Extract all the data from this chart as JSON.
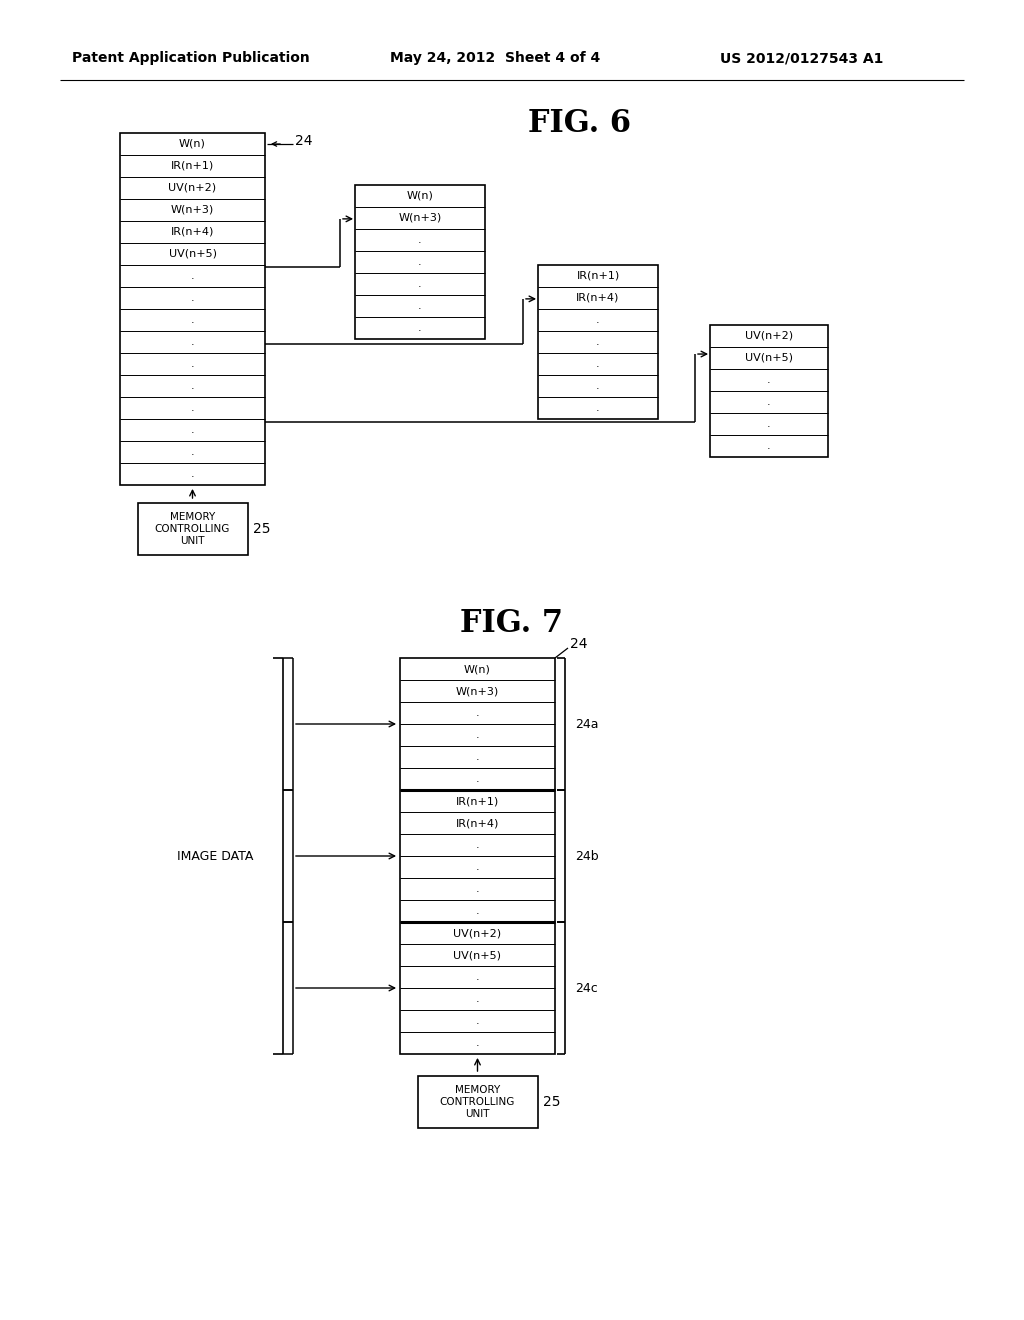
{
  "bg_color": "#ffffff",
  "header_left": "Patent Application Publication",
  "header_mid": "May 24, 2012  Sheet 4 of 4",
  "header_right": "US 2012/0127543 A1",
  "fig6_title": "FIG. 6",
  "fig7_title": "FIG. 7",
  "line_color": "#000000",
  "text_color": "#000000"
}
